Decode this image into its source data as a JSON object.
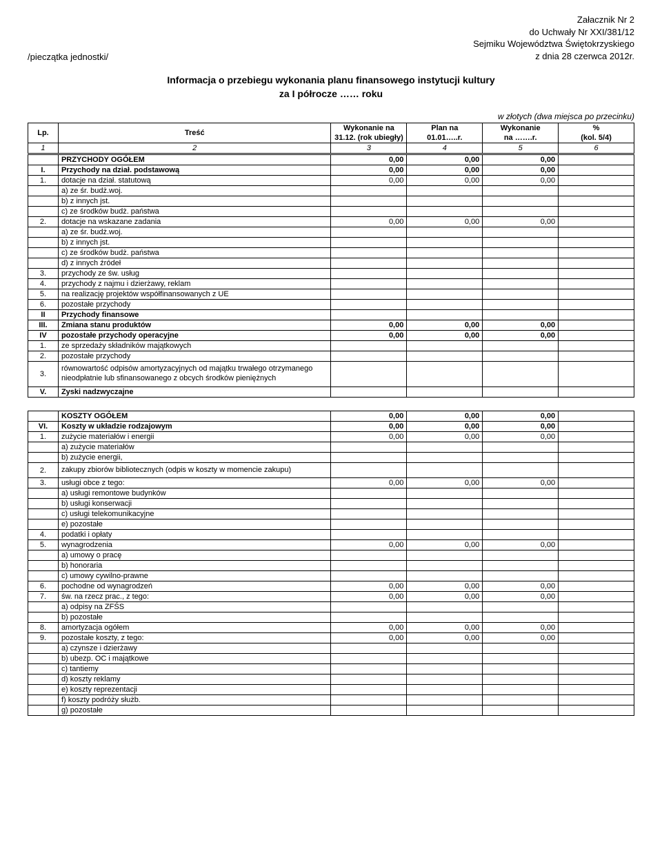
{
  "header": {
    "stamp": "/pieczątka jednostki/",
    "annex": "Załacznik Nr 2",
    "resolution": "do Uchwały Nr XXI/381/12",
    "council": "Sejmiku Województwa Świętokrzyskiego",
    "date": "z dnia 28 czerwca 2012r.",
    "title": "Informacja o przebiegu wykonania planu finansowego instytucji kultury",
    "subtitle": "za I półrocze …… roku",
    "unit_note": "w złotych (dwa miejsca po przecinku)"
  },
  "columns": {
    "lp": "Lp.",
    "tresc": "Treść",
    "wyk_top": "Wykonanie na",
    "wyk_bot": "31.12. (rok ubiegły)",
    "plan_top": "Plan na",
    "plan_bot": "01.01…..r.",
    "wyk2_top": "Wykonanie",
    "wyk2_bot": "na …….r.",
    "pct_top": "%",
    "pct_bot": "(kol. 5/4)",
    "n1": "1",
    "n2": "2",
    "n3": "3",
    "n4": "4",
    "n5": "5",
    "n6": "6"
  },
  "v": {
    "zero": "0,00"
  },
  "rows1": {
    "r0": "PRZYCHODY OGÓŁEM",
    "r1_lp": "I.",
    "r1": "Przychody na dział. podstawową",
    "r2_lp": "1.",
    "r2": "dotacje na dział. statutową",
    "r3": "a) ze śr. budż.woj.",
    "r4": "b) z innych jst.",
    "r5": "c) ze środków budż. państwa",
    "r6_lp": "2.",
    "r6": "dotacje na wskazane zadania",
    "r7": "a) ze śr. budż.woj.",
    "r8": "b) z innych jst.",
    "r9": "c) ze środków budż. państwa",
    "r10": "d) z innych źródeł",
    "r11_lp": "3.",
    "r11": "przychody ze św. usług",
    "r12_lp": "4.",
    "r12": "przychody z najmu i dzierżawy, reklam",
    "r13_lp": "5.",
    "r13": "na realizację projektów współfinansowanych z UE",
    "r14_lp": "6.",
    "r14": "pozostałe przychody",
    "r15_lp": "II",
    "r15": "Przychody finansowe",
    "r16_lp": "III.",
    "r16": "Zmiana stanu produktów",
    "r17_lp": "IV",
    "r17": "pozostałe przychody operacyjne",
    "r18_lp": "1.",
    "r18": "ze sprzedaży składników majątkowych",
    "r19_lp": "2.",
    "r19": "pozostałe przychody",
    "r20_lp": "3.",
    "r20": "równowartość odpisów amortyzacyjnych od majątku trwałego otrzymanego nieodpłatnie lub sfinansowanego z obcych środków pieniężnych",
    "r21_lp": "V.",
    "r21": "Zyski nadzwyczajne"
  },
  "rows2": {
    "k0": "KOSZTY OGÓŁEM",
    "k1_lp": "VI.",
    "k1": "Koszty w układzie rodzajowym",
    "k2_lp": "1.",
    "k2": "zużycie materiałów i energii",
    "k3": "a) zużycie materiałów",
    "k4": "b) zużycie energii,",
    "k5_lp": "2.",
    "k5": "zakupy zbiorów bibliotecznych (odpis w koszty w momencie zakupu)",
    "k6_lp": "3.",
    "k6": "usługi obce z tego:",
    "k7": "a) usługi remontowe budynków",
    "k8": "b) usługi konserwacji",
    "k9": "c) usługi telekomunikacyjne",
    "k10": "e) pozostałe",
    "k11_lp": "4.",
    "k11": "podatki i opłaty",
    "k12_lp": "5.",
    "k12": "wynagrodzenia",
    "k13": "a) umowy o pracę",
    "k14": "b) honoraria",
    "k15": "c) umowy cywilno-prawne",
    "k16_lp": "6.",
    "k16": "pochodne od wynagrodzeń",
    "k17_lp": "7.",
    "k17": "św. na rzecz prac., z tego:",
    "k18": "a) odpisy na ZFŚS",
    "k19": "b) pozostałe",
    "k20_lp": "8.",
    "k20": "amortyzacja ogółem",
    "k21_lp": "9.",
    "k21": "pozostałe koszty, z tego:",
    "k22": "a) czynsze i dzierżawy",
    "k23": "b) ubezp. OC i majątkowe",
    "k24": "c) tantiemy",
    "k25": "d) koszty reklamy",
    "k26": "e) koszty reprezentacji",
    "k27": "f) koszty podróży służb.",
    "k28": "g) pozostałe"
  }
}
